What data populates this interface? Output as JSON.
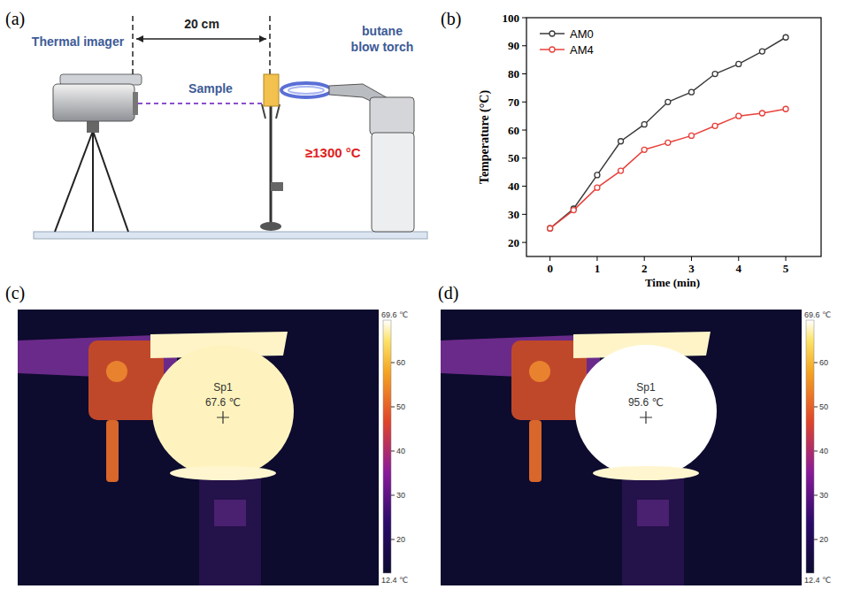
{
  "panel_labels": [
    "(a)",
    "(b)",
    "(c)",
    "(d)"
  ],
  "diagram": {
    "imager": "Thermal imager",
    "distance": "20 cm",
    "sample": "Sample",
    "torch": [
      "butane",
      "blow torch"
    ],
    "flame_temperature": "≥1300 °C"
  },
  "chart_data": {
    "type": "line",
    "x": [
      0,
      0.5,
      1,
      1.5,
      2,
      2.5,
      3,
      3.5,
      4,
      4.5,
      5
    ],
    "xlim": [
      -0.5,
      5.75
    ],
    "xticks": [
      0,
      1,
      2,
      3,
      4,
      5
    ],
    "ylim": [
      15,
      100
    ],
    "yticks": [
      20,
      30,
      40,
      50,
      60,
      70,
      80,
      90,
      100
    ],
    "xlabel": "Time (min)",
    "ylabel": "Temperature (°C)",
    "legend": "upper left",
    "series": [
      {
        "name": "AM0",
        "color": "#3a3a3a",
        "marker": "circle",
        "values": [
          25,
          32,
          44,
          56,
          62,
          70,
          73.5,
          80,
          83.5,
          88,
          93
        ]
      },
      {
        "name": "AM4",
        "color": "#e8403a",
        "marker": "circle",
        "values": [
          25,
          31.5,
          39.5,
          45.5,
          53,
          55.5,
          58,
          61.5,
          65,
          66,
          67.5
        ]
      }
    ]
  },
  "thermal_images": [
    {
      "spot": "Sp1",
      "value": 67.6,
      "value_label": "67.6 ℃",
      "colorbar": {
        "min": {
          "value": 12.4,
          "label": "12.4 ℃"
        },
        "max": {
          "value": 69.6,
          "label": "69.6 ℃"
        },
        "ticks": [
          20,
          30,
          40,
          50,
          60
        ]
      }
    },
    {
      "spot": "Sp1",
      "value": 95.6,
      "value_label": "95.6 ℃",
      "colorbar": {
        "min": {
          "value": 12.4,
          "label": "12.4 ℃"
        },
        "max": {
          "value": 69.6,
          "label": "69.6 ℃"
        },
        "ticks": [
          20,
          30,
          40,
          50,
          60
        ]
      }
    }
  ]
}
